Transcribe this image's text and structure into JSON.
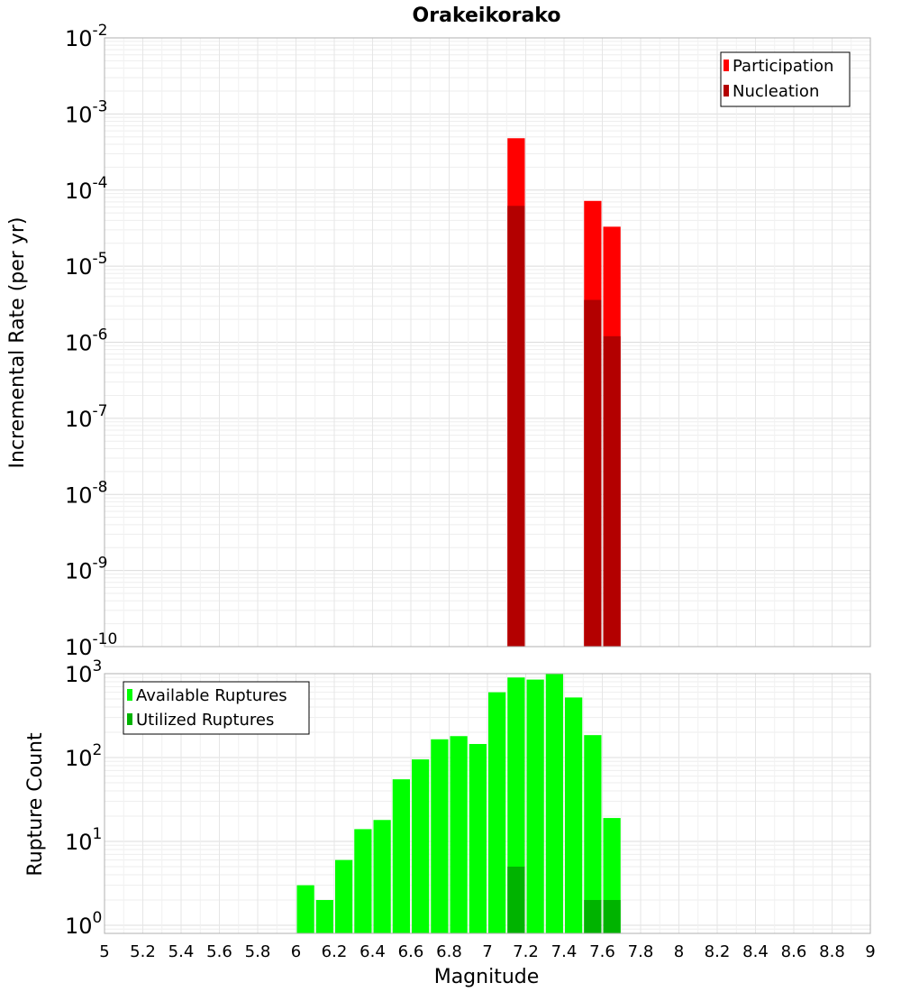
{
  "chart_data": [
    {
      "type": "bar",
      "title": "Orakeikorako",
      "ylabel": "Incremental Rate (per yr)",
      "y_scale": "log",
      "ylim": [
        1e-10,
        0.01
      ],
      "y_ticks": [
        {
          "base": "10",
          "exp": "-10"
        },
        {
          "base": "10",
          "exp": "-9"
        },
        {
          "base": "10",
          "exp": "-8"
        },
        {
          "base": "10",
          "exp": "-7"
        },
        {
          "base": "10",
          "exp": "-6"
        },
        {
          "base": "10",
          "exp": "-5"
        },
        {
          "base": "10",
          "exp": "-4"
        },
        {
          "base": "10",
          "exp": "-3"
        },
        {
          "base": "10",
          "exp": "-2"
        }
      ],
      "xlim": [
        5,
        9
      ],
      "bin_width": 0.1,
      "legend_position": "top-right",
      "grid": true,
      "series": [
        {
          "name": "Participation",
          "color": "#ff0000",
          "x": [
            7.15,
            7.55,
            7.65
          ],
          "values": [
            0.00048,
            7.2e-05,
            3.3e-05
          ]
        },
        {
          "name": "Nucleation",
          "color": "#b30000",
          "x": [
            7.15,
            7.55,
            7.65
          ],
          "values": [
            6.2e-05,
            3.6e-06,
            1.2e-06
          ]
        }
      ]
    },
    {
      "type": "bar",
      "ylabel": "Rupture Count",
      "xlabel": "Magnitude",
      "y_scale": "log",
      "ylim": [
        0.8,
        1000
      ],
      "y_ticks": [
        {
          "base": "10",
          "exp": "0"
        },
        {
          "base": "10",
          "exp": "1"
        },
        {
          "base": "10",
          "exp": "2"
        },
        {
          "base": "10",
          "exp": "3"
        }
      ],
      "xlim": [
        5,
        9
      ],
      "x_ticks": [
        "5",
        "5.2",
        "5.4",
        "5.6",
        "5.8",
        "6",
        "6.2",
        "6.4",
        "6.6",
        "6.8",
        "7",
        "7.2",
        "7.4",
        "7.6",
        "7.8",
        "8",
        "8.2",
        "8.4",
        "8.6",
        "8.8",
        "9"
      ],
      "bin_width": 0.1,
      "legend_position": "top-left",
      "grid": true,
      "series": [
        {
          "name": "Available Ruptures",
          "color": "#00ff00",
          "x": [
            6.05,
            6.15,
            6.25,
            6.35,
            6.45,
            6.55,
            6.65,
            6.75,
            6.85,
            6.95,
            7.05,
            7.15,
            7.25,
            7.35,
            7.45,
            7.55,
            7.65
          ],
          "values": [
            3,
            2,
            6,
            14,
            18,
            55,
            95,
            165,
            180,
            145,
            600,
            900,
            850,
            1000,
            520,
            185,
            19
          ]
        },
        {
          "name": "Utilized Ruptures",
          "color": "#00b300",
          "x": [
            7.15,
            7.55,
            7.65
          ],
          "values": [
            5,
            2,
            2
          ]
        }
      ]
    }
  ]
}
